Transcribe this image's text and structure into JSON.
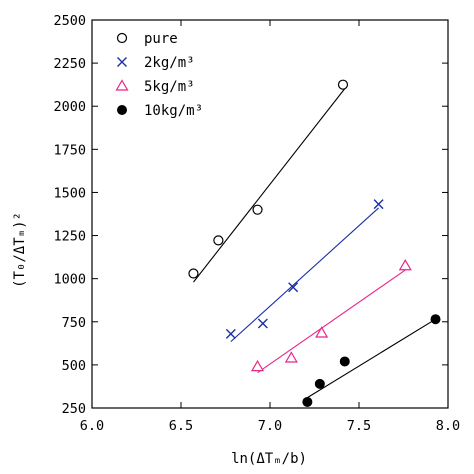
{
  "chart_data": {
    "type": "scatter",
    "xlabel": "ln(ΔTₘ/b)",
    "ylabel": "(T₀/ΔTₘ)²",
    "xlim": [
      6.0,
      8.0
    ],
    "ylim": [
      250,
      2500
    ],
    "x_ticks": [
      6.0,
      6.5,
      7.0,
      7.5,
      8.0
    ],
    "y_ticks": [
      250,
      500,
      750,
      1000,
      1250,
      1500,
      1750,
      2000,
      2250,
      2500
    ],
    "x_tick_labels": [
      "6.0",
      "6.5",
      "7.0",
      "7.5",
      "8.0"
    ],
    "y_tick_labels": [
      "250",
      "500",
      "750",
      "1000",
      "1250",
      "1500",
      "1750",
      "2000",
      "2250",
      "2500"
    ],
    "legend_position": "top-left",
    "grid": false,
    "series": [
      {
        "name": "pure",
        "marker": "open-circle",
        "color": "#000000",
        "points": [
          [
            6.57,
            1030
          ],
          [
            6.71,
            1222
          ],
          [
            6.93,
            1400
          ],
          [
            7.41,
            2125
          ]
        ],
        "fit": [
          [
            6.57,
            980
          ],
          [
            7.43,
            2115
          ]
        ]
      },
      {
        "name": "2kg/m³",
        "marker": "x",
        "color": "#1a2fa8",
        "points": [
          [
            6.78,
            680
          ],
          [
            6.96,
            740
          ],
          [
            7.13,
            950
          ],
          [
            7.61,
            1432
          ]
        ],
        "fit": [
          [
            6.78,
            635
          ],
          [
            7.61,
            1410
          ]
        ]
      },
      {
        "name": "5kg/m³",
        "marker": "open-triangle",
        "color": "#e8268a",
        "points": [
          [
            6.93,
            490
          ],
          [
            7.12,
            540
          ],
          [
            7.29,
            685
          ],
          [
            7.76,
            1075
          ]
        ],
        "fit": [
          [
            6.93,
            455
          ],
          [
            7.76,
            1050
          ]
        ]
      },
      {
        "name": "10kg/m³",
        "marker": "filled-circle",
        "color": "#000000",
        "points": [
          [
            7.21,
            285
          ],
          [
            7.28,
            390
          ],
          [
            7.42,
            520
          ],
          [
            7.93,
            765
          ]
        ],
        "fit": [
          [
            7.21,
            310
          ],
          [
            7.93,
            765
          ]
        ]
      }
    ]
  }
}
